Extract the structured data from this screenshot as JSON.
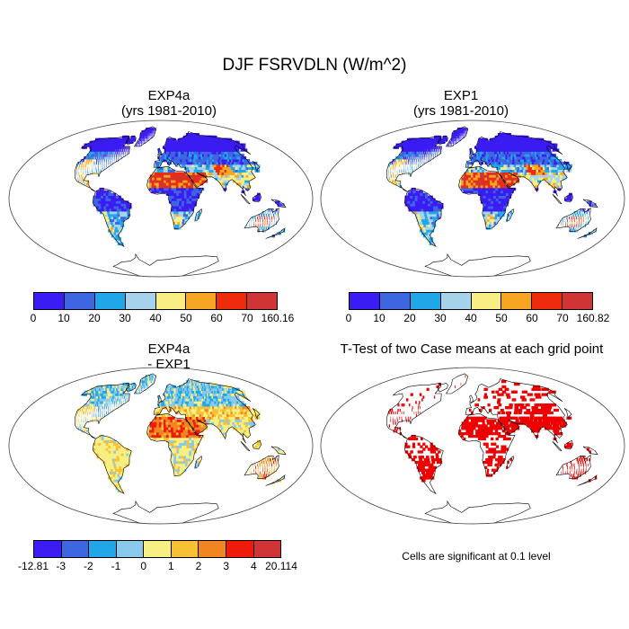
{
  "figure": {
    "title": "DJF FSRVDLN (W/m^2)"
  },
  "panels": [
    {
      "id": "exp4a",
      "title_line1": "EXP4a",
      "title_line2": "(yrs 1981-2010)",
      "field": "mean"
    },
    {
      "id": "exp1",
      "title_line1": "EXP1",
      "title_line2": "(yrs 1981-2010)",
      "field": "mean"
    },
    {
      "id": "diff",
      "title_line1": "EXP4a",
      "title_line2": "- EXP1",
      "field": "difference"
    },
    {
      "id": "ttest",
      "title_line1": "T-Test of two Case means at each grid point",
      "title_line2": "",
      "field": "significance"
    }
  ],
  "colorbars": {
    "exp4a": {
      "colors": [
        "#3b1cf2",
        "#3d67e0",
        "#21a6e8",
        "#a7d3ea",
        "#f7ef83",
        "#f6a623",
        "#ee2b0c",
        "#d13434"
      ],
      "labels": [
        "0",
        "10",
        "20",
        "30",
        "40",
        "50",
        "60",
        "70",
        "160.16"
      ]
    },
    "exp1": {
      "colors": [
        "#3b1cf2",
        "#3d67e0",
        "#21a6e8",
        "#a7d3ea",
        "#f7ef83",
        "#f6a623",
        "#ee2b0c",
        "#d13434"
      ],
      "labels": [
        "0",
        "10",
        "20",
        "30",
        "40",
        "50",
        "60",
        "70",
        "160.82"
      ]
    },
    "diff": {
      "colors": [
        "#3b1cf2",
        "#3d67e0",
        "#21a6e8",
        "#89c9ec",
        "#f7ef83",
        "#f8c033",
        "#f08522",
        "#ee1a0a",
        "#d13434"
      ],
      "labels": [
        "-12.81",
        "-3",
        "-2",
        "-1",
        "0",
        "1",
        "2",
        "3",
        "4",
        "20.114"
      ]
    }
  },
  "significance_note": "Cells are significant at 0.1 level",
  "colors": {
    "significant": "#ee0000",
    "coast": "#000000",
    "frame": "#444444"
  }
}
